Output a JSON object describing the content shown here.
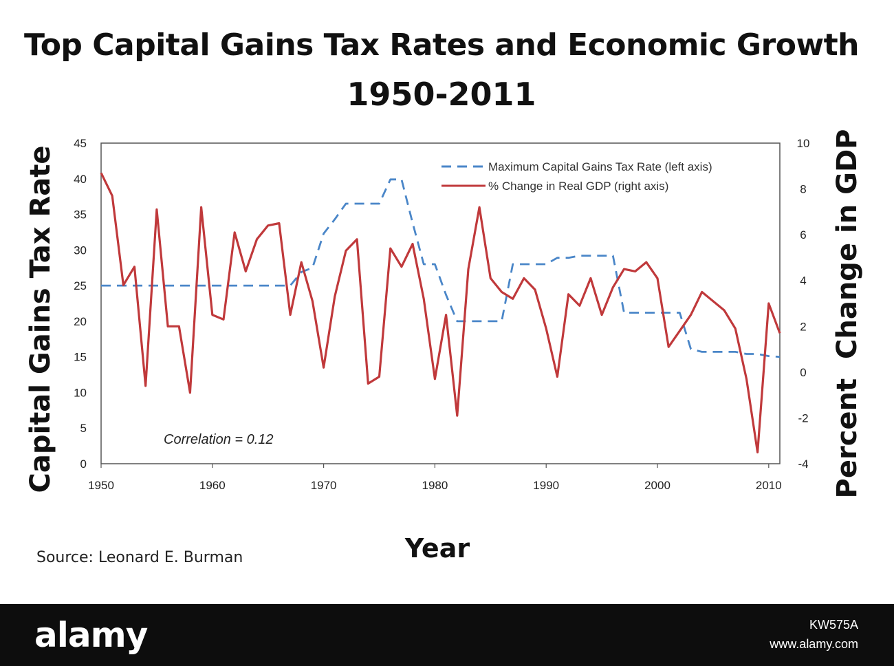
{
  "header": {
    "title_line1": "Top Capital Gains Tax Rates and Economic Growth",
    "title_line2": "1950-2011"
  },
  "footer": {
    "logo": "alamy",
    "image_id": "KW575A",
    "url": "www.alamy.com"
  },
  "source": "Source: Leonard E. Burman",
  "chart_data": {
    "type": "line",
    "xlabel": "Year",
    "ylabel_left": "Capital Gains Tax Rate",
    "ylabel_right": "Percent  Change in GDP",
    "xlim": [
      1950,
      2011
    ],
    "ylim_left": [
      0,
      45
    ],
    "ylim_right": [
      -4,
      10
    ],
    "x_ticks": [
      "1950",
      "1960",
      "1970",
      "1980",
      "1990",
      "2000",
      "2010"
    ],
    "y_ticks_left": [
      "0",
      "5",
      "10",
      "15",
      "20",
      "25",
      "30",
      "35",
      "40",
      "45"
    ],
    "y_ticks_right": [
      "-4",
      "-2",
      "0",
      "2",
      "4",
      "6",
      "8",
      "10"
    ],
    "grid": false,
    "legend_position": "top-right",
    "annotation": "Correlation = 0.12",
    "series": [
      {
        "name": "Maximum Capital Gains Tax Rate (left axis)",
        "axis": "left",
        "style": "dashed",
        "color": "#4a86c8",
        "x": [
          1950,
          1951,
          1952,
          1953,
          1954,
          1955,
          1956,
          1957,
          1958,
          1959,
          1960,
          1961,
          1962,
          1963,
          1964,
          1965,
          1966,
          1967,
          1968,
          1969,
          1970,
          1971,
          1972,
          1973,
          1974,
          1975,
          1976,
          1977,
          1978,
          1979,
          1980,
          1981,
          1982,
          1983,
          1984,
          1985,
          1986,
          1987,
          1988,
          1989,
          1990,
          1991,
          1992,
          1993,
          1994,
          1995,
          1996,
          1997,
          1998,
          1999,
          2000,
          2001,
          2002,
          2003,
          2004,
          2005,
          2006,
          2007,
          2008,
          2009,
          2010,
          2011
        ],
        "values": [
          25,
          25,
          25,
          25,
          25,
          25,
          25,
          25,
          25,
          25,
          25,
          25,
          25,
          25,
          25,
          25,
          25,
          25,
          26.9,
          27.5,
          32.3,
          34.3,
          36.5,
          36.5,
          36.5,
          36.5,
          39.9,
          39.9,
          33.8,
          28,
          28,
          23.7,
          20,
          20,
          20,
          20,
          20,
          28,
          28,
          28,
          28,
          28.9,
          28.9,
          29.2,
          29.2,
          29.2,
          29.2,
          21.2,
          21.2,
          21.2,
          21.2,
          21.2,
          21.2,
          16.1,
          15.7,
          15.7,
          15.7,
          15.7,
          15.4,
          15.4,
          15.1,
          15
        ]
      },
      {
        "name": "% Change in Real GDP (right axis)",
        "axis": "right",
        "style": "solid",
        "color": "#c0393b",
        "x": [
          1950,
          1951,
          1952,
          1953,
          1954,
          1955,
          1956,
          1957,
          1958,
          1959,
          1960,
          1961,
          1962,
          1963,
          1964,
          1965,
          1966,
          1967,
          1968,
          1969,
          1970,
          1971,
          1972,
          1973,
          1974,
          1975,
          1976,
          1977,
          1978,
          1979,
          1980,
          1981,
          1982,
          1983,
          1984,
          1985,
          1986,
          1987,
          1988,
          1989,
          1990,
          1991,
          1992,
          1993,
          1994,
          1995,
          1996,
          1997,
          1998,
          1999,
          2000,
          2001,
          2002,
          2003,
          2004,
          2005,
          2006,
          2007,
          2008,
          2009,
          2010,
          2011
        ],
        "values": [
          8.7,
          7.7,
          3.8,
          4.6,
          -0.6,
          7.1,
          2.0,
          2.0,
          -0.9,
          7.2,
          2.5,
          2.3,
          6.1,
          4.4,
          5.8,
          6.4,
          6.5,
          2.5,
          4.8,
          3.1,
          0.2,
          3.3,
          5.3,
          5.8,
          -0.5,
          -0.2,
          5.4,
          4.6,
          5.6,
          3.2,
          -0.3,
          2.5,
          -1.9,
          4.5,
          7.2,
          4.1,
          3.5,
          3.2,
          4.1,
          3.6,
          1.9,
          -0.2,
          3.4,
          2.9,
          4.1,
          2.5,
          3.7,
          4.5,
          4.4,
          4.8,
          4.1,
          1.1,
          1.8,
          2.5,
          3.5,
          3.1,
          2.7,
          1.9,
          -0.3,
          -3.5,
          3.0,
          1.7
        ]
      }
    ]
  }
}
